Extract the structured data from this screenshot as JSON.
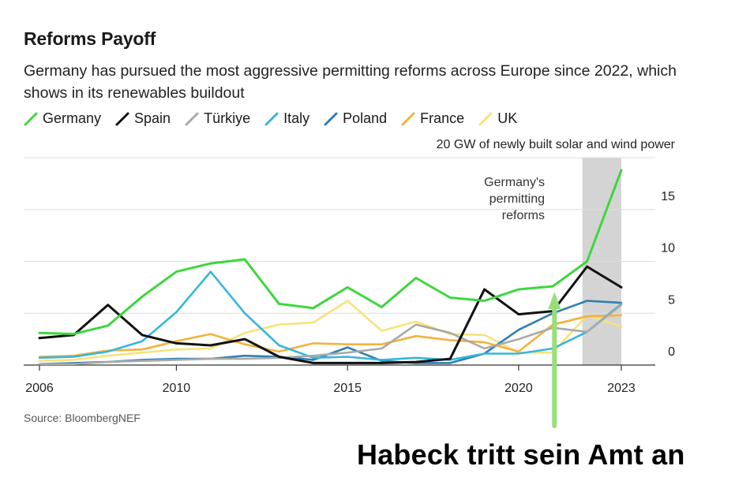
{
  "header": {
    "title": "Reforms Payoff",
    "subtitle": "Germany has pursued the most aggressive permitting reforms across Europe since 2022, which shows in its renewables buildout"
  },
  "colors": {
    "Germany": "#3ed63e",
    "Spain": "#111111",
    "Türkiye": "#a9a9a9",
    "Italy": "#36b6dc",
    "Poland": "#2f7fb0",
    "France": "#f2b33c",
    "UK": "#f8e27a",
    "highlight": "#d4d4d4",
    "arrow": "#98df7c"
  },
  "chart_data": {
    "type": "line",
    "units_label": "20 GW of newly built solar and wind power",
    "x": [
      2006,
      2007,
      2008,
      2009,
      2010,
      2011,
      2012,
      2013,
      2014,
      2015,
      2016,
      2017,
      2018,
      2019,
      2020,
      2021,
      2022,
      2023
    ],
    "x_ticks": [
      "2006",
      "2010",
      "2015",
      "2020",
      "2023"
    ],
    "y_ticks": [
      "0",
      "5",
      "10",
      "15"
    ],
    "ylim": [
      0,
      20
    ],
    "xlim": [
      2006,
      2023
    ],
    "series": [
      {
        "name": "Germany",
        "values": [
          3.1,
          3.0,
          3.8,
          6.6,
          9.0,
          9.8,
          10.2,
          5.9,
          5.5,
          7.5,
          5.6,
          8.4,
          6.5,
          6.2,
          7.3,
          7.6,
          10.0,
          18.8
        ]
      },
      {
        "name": "Spain",
        "values": [
          2.6,
          2.9,
          5.8,
          2.9,
          2.1,
          1.9,
          2.5,
          0.8,
          0.2,
          0.2,
          0.2,
          0.3,
          0.6,
          7.3,
          4.9,
          5.2,
          9.5,
          7.5
        ]
      },
      {
        "name": "Türkiye",
        "values": [
          0.1,
          0.1,
          0.3,
          0.4,
          0.5,
          0.6,
          0.6,
          0.7,
          0.9,
          1.2,
          1.6,
          3.9,
          3.1,
          1.6,
          2.5,
          3.6,
          3.2,
          5.8
        ]
      },
      {
        "name": "Italy",
        "values": [
          0.7,
          0.8,
          1.3,
          2.3,
          5.1,
          9.0,
          5.0,
          1.9,
          0.7,
          0.8,
          0.5,
          0.7,
          0.5,
          1.1,
          1.1,
          1.6,
          3.2,
          5.9
        ]
      },
      {
        "name": "Poland",
        "values": [
          0.1,
          0.2,
          0.3,
          0.5,
          0.6,
          0.6,
          0.9,
          0.8,
          0.5,
          1.7,
          0.4,
          0.2,
          0.2,
          1.1,
          3.4,
          5.0,
          6.2,
          6.0
        ]
      },
      {
        "name": "France",
        "values": [
          0.8,
          0.9,
          1.4,
          1.5,
          2.3,
          3.0,
          2.0,
          1.3,
          2.1,
          2.0,
          2.0,
          2.8,
          2.4,
          2.2,
          1.3,
          3.9,
          4.7,
          4.8
        ]
      },
      {
        "name": "UK",
        "values": [
          0.4,
          0.5,
          0.9,
          1.2,
          1.5,
          1.6,
          3.1,
          3.9,
          4.1,
          6.2,
          3.3,
          4.2,
          3.0,
          2.9,
          1.2,
          1.2,
          4.8,
          3.7
        ]
      }
    ],
    "highlight_range": [
      2022,
      2023
    ],
    "annotation": "Germany's permitting reforms"
  },
  "footer": {
    "source": "Source: BloombergNEF",
    "caption": "Habeck tritt sein Amt an"
  }
}
